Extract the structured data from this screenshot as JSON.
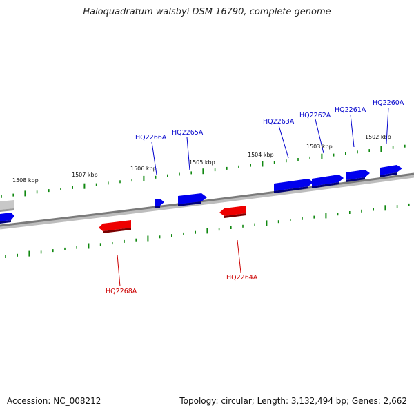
{
  "header": {
    "title": "Haloquadratum walsbyi DSM 16790, complete genome"
  },
  "footer": {
    "accession": "Accession: NC_008212",
    "summary": "Topology: circular; Length: 3,132,494 bp; Genes: 2,662"
  },
  "colors": {
    "forward_gene": "#0000ee",
    "reverse_gene": "#ee0000",
    "other_gene": "#c8c8c8",
    "backbone": "#808080",
    "ticks": "#118811"
  },
  "scale": {
    "labels": [
      {
        "text": "1508 kbp"
      },
      {
        "text": "1507 kbp"
      },
      {
        "text": "1506 kbp"
      },
      {
        "text": "1505 kbp"
      },
      {
        "text": "1504 kbp"
      },
      {
        "text": "1503 kbp"
      },
      {
        "text": "1502 kbp"
      }
    ]
  },
  "genes": {
    "forward": [
      {
        "label": "HQ2266A"
      },
      {
        "label": "HQ2265A"
      },
      {
        "label": "HQ2263A"
      },
      {
        "label": "HQ2262A"
      },
      {
        "label": "HQ2261A"
      },
      {
        "label": "HQ2260A"
      }
    ],
    "reverse": [
      {
        "label": "HQ2268A"
      },
      {
        "label": "HQ2264A"
      }
    ]
  }
}
